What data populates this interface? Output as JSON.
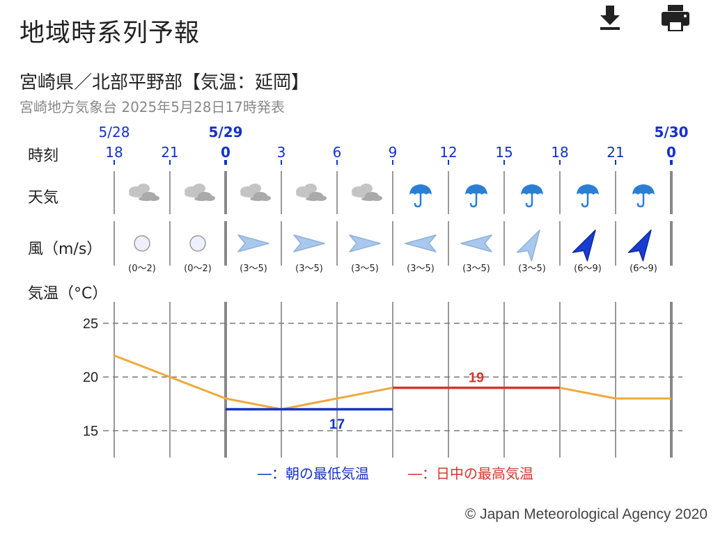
{
  "page": {
    "title": "地域時系列予報",
    "download_icon": "download-icon",
    "print_icon": "print-icon"
  },
  "forecast": {
    "area": "宮崎県／北部平野部【気温：延岡】",
    "issued": "宮崎地方気象台 2025年5月28日17時発表"
  },
  "rows": {
    "time": "時刻",
    "weather": "天気",
    "wind": "風（m/s）",
    "temp": "気温（°C）"
  },
  "timeline": {
    "dates": [
      {
        "label": "5/28",
        "index": 0,
        "bold": false
      },
      {
        "label": "5/29",
        "index": 2,
        "bold": true
      },
      {
        "label": "5/30",
        "index": 10,
        "bold": true
      }
    ],
    "hours": [
      "18",
      "21",
      "0",
      "3",
      "6",
      "9",
      "12",
      "15",
      "18",
      "21",
      "0"
    ],
    "day_boundaries": [
      2,
      10
    ]
  },
  "weather": [
    "cloudy-icon",
    "cloudy-icon",
    "cloudy-icon",
    "cloudy-icon",
    "cloudy-icon",
    "umbrella-icon",
    "umbrella-icon",
    "umbrella-icon",
    "umbrella-icon",
    "umbrella-icon"
  ],
  "wind": [
    {
      "type": "calm",
      "range": "(0〜2)"
    },
    {
      "type": "arrow",
      "dir": "east",
      "strength": "weak",
      "range": "(3〜5)"
    },
    {
      "type": "arrow",
      "dir": "east",
      "strength": "weak",
      "range": "(3〜5)"
    },
    {
      "type": "arrow",
      "dir": "east",
      "strength": "weak",
      "range": "(3〜5)"
    },
    {
      "type": "arrow",
      "dir": "west",
      "strength": "weak",
      "range": "(3〜5)"
    },
    {
      "type": "arrow",
      "dir": "west",
      "strength": "weak",
      "range": "(3〜5)"
    },
    {
      "type": "arrow",
      "dir": "northeast",
      "strength": "weak",
      "range": "(3〜5)"
    },
    {
      "type": "arrow",
      "dir": "northeast",
      "strength": "strong",
      "range": "(6〜9)"
    },
    {
      "type": "arrow",
      "dir": "northeast",
      "strength": "strong",
      "range": "(6〜9)"
    }
  ],
  "wind_calm_first": {
    "type": "calm",
    "range": "(0〜2)"
  },
  "chart_data": {
    "type": "line",
    "x": [
      "18",
      "21",
      "0",
      "3",
      "6",
      "9",
      "12",
      "15",
      "18",
      "21",
      "0"
    ],
    "series": [
      {
        "values": [
          22,
          20,
          18,
          17,
          18,
          19,
          19,
          19,
          19,
          18,
          18
        ],
        "color": "#f0a83c"
      }
    ],
    "min_temp": {
      "value": 17,
      "label": "17",
      "from_index": 2,
      "to_index": 5,
      "color": "#1432c8"
    },
    "max_temp": {
      "value": 19,
      "label": "19",
      "from_index": 5,
      "to_index": 8,
      "color": "#d9342b"
    },
    "y_ticks": [
      "25",
      "20",
      "15"
    ],
    "ylim": [
      12.5,
      27
    ],
    "grid": "dashed"
  },
  "legend": {
    "min": "―：朝の最低気温",
    "max": "―：日中の最高気温"
  },
  "footer": {
    "copyright": "© Japan Meteorological Agency 2020"
  },
  "colors": {
    "date_blue": "#1432c8",
    "temp_line": "#f0a83c",
    "min_line": "#1432c8",
    "max_line": "#d9342b",
    "umbrella": "#2a7fd4",
    "cloud": "#b5b5b5",
    "wind_weak": "#a9c8ee",
    "wind_strong": "#1a3ccf"
  }
}
